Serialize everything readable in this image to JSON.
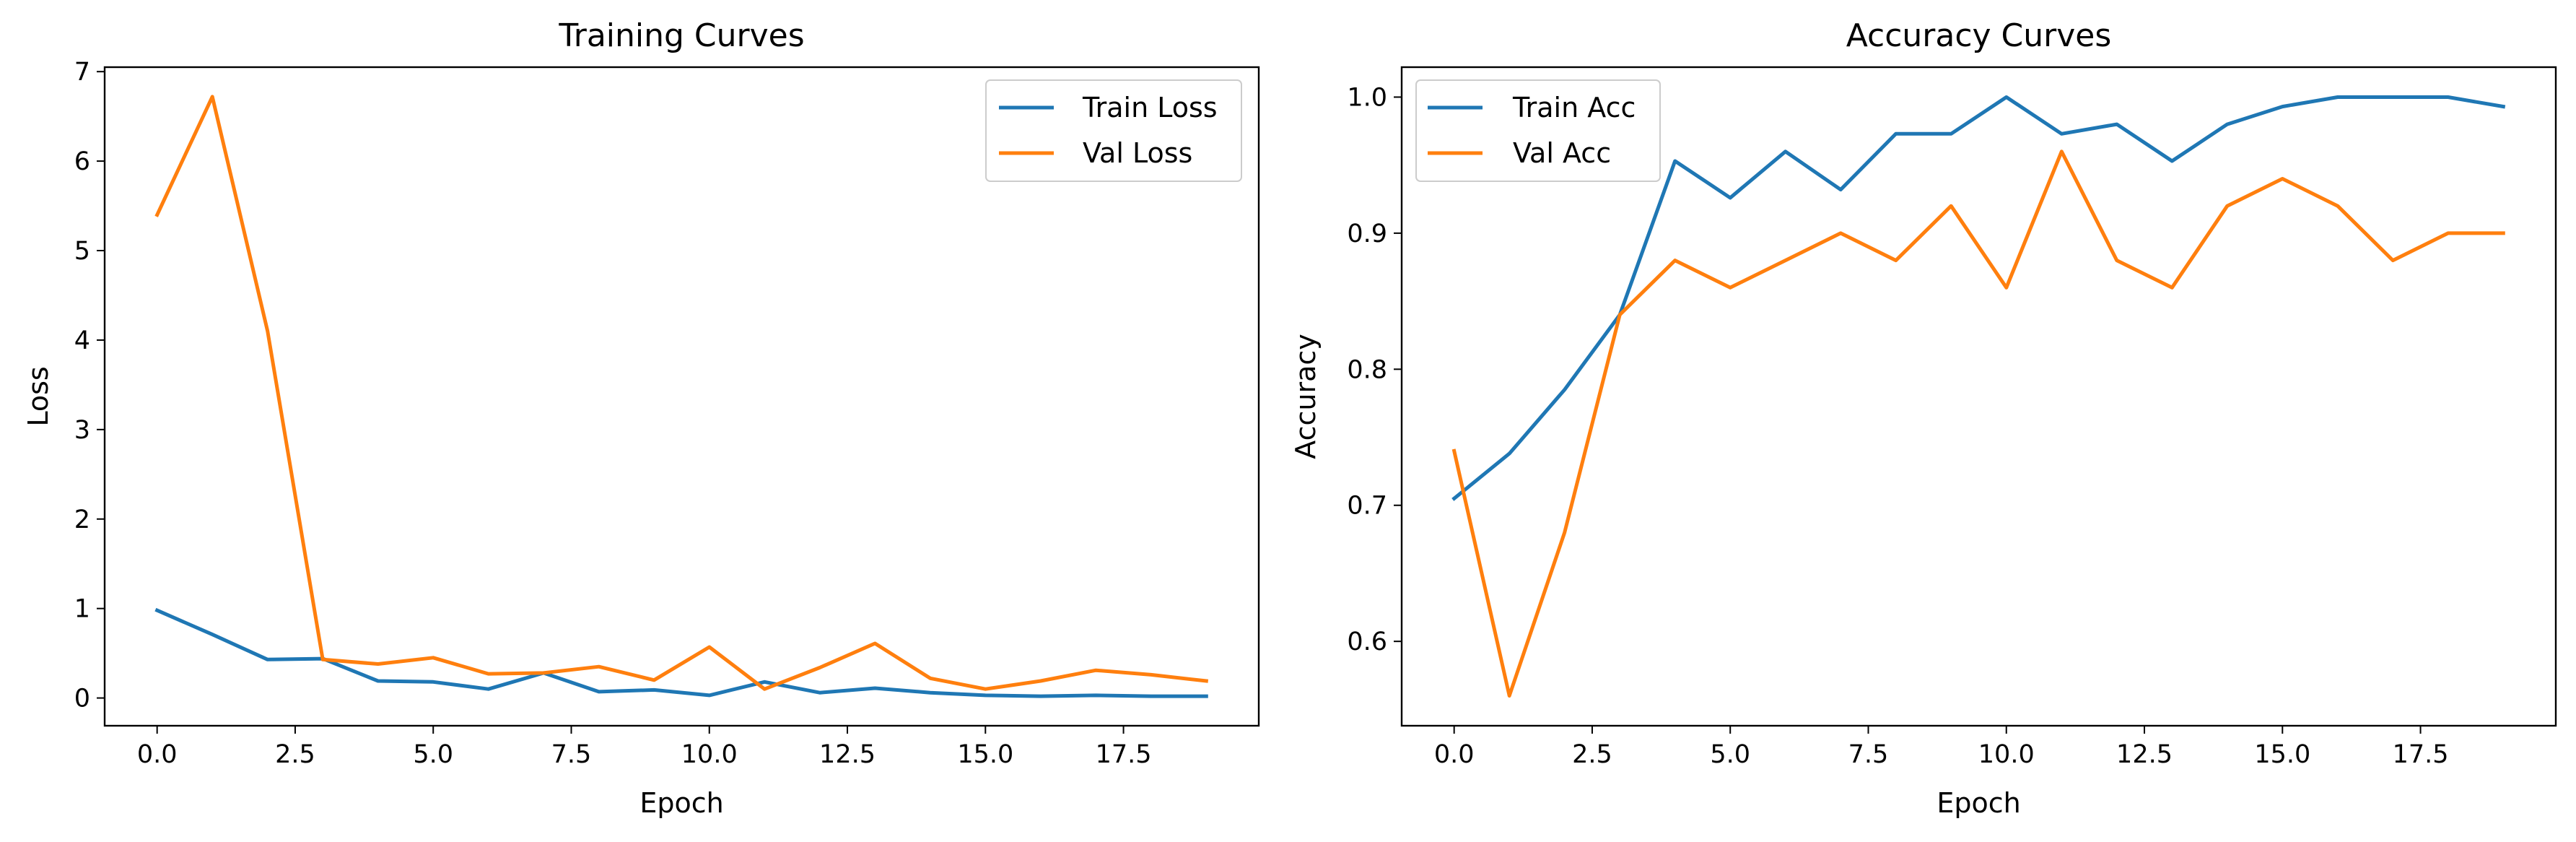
{
  "chart_data": [
    {
      "type": "line",
      "title": "Training Curves",
      "xlabel": "Epoch",
      "ylabel": "Loss",
      "xlim": [
        -0.95,
        19.95
      ],
      "ylim": [
        -0.31,
        7.05
      ],
      "x_ticks": [
        0.0,
        2.5,
        5.0,
        7.5,
        10.0,
        12.5,
        15.0,
        17.5
      ],
      "x_tick_labels": [
        "0.0",
        "2.5",
        "5.0",
        "7.5",
        "10.0",
        "12.5",
        "15.0",
        "17.5"
      ],
      "y_ticks": [
        0,
        1,
        2,
        3,
        4,
        5,
        6,
        7
      ],
      "y_tick_labels": [
        "0",
        "1",
        "2",
        "3",
        "4",
        "5",
        "6",
        "7"
      ],
      "legend_position": "top-right",
      "grid": false,
      "x": [
        0,
        1,
        2,
        3,
        4,
        5,
        6,
        7,
        8,
        9,
        10,
        11,
        12,
        13,
        14,
        15,
        16,
        17,
        18,
        19
      ],
      "series": [
        {
          "name": "Train Loss",
          "color": "#1f77b4",
          "values": [
            0.98,
            0.71,
            0.43,
            0.44,
            0.19,
            0.18,
            0.1,
            0.28,
            0.07,
            0.09,
            0.03,
            0.18,
            0.06,
            0.11,
            0.06,
            0.03,
            0.02,
            0.03,
            0.02,
            0.02
          ]
        },
        {
          "name": "Val Loss",
          "color": "#ff7f0e",
          "values": [
            5.4,
            6.72,
            4.1,
            0.43,
            0.38,
            0.45,
            0.27,
            0.28,
            0.35,
            0.2,
            0.57,
            0.1,
            0.34,
            0.61,
            0.22,
            0.1,
            0.19,
            0.31,
            0.26,
            0.19
          ]
        }
      ]
    },
    {
      "type": "line",
      "title": "Accuracy Curves",
      "xlabel": "Epoch",
      "ylabel": "Accuracy",
      "xlim": [
        -0.95,
        19.95
      ],
      "ylim": [
        0.538,
        1.022
      ],
      "x_ticks": [
        0.0,
        2.5,
        5.0,
        7.5,
        10.0,
        12.5,
        15.0,
        17.5
      ],
      "x_tick_labels": [
        "0.0",
        "2.5",
        "5.0",
        "7.5",
        "10.0",
        "12.5",
        "15.0",
        "17.5"
      ],
      "y_ticks": [
        0.6,
        0.7,
        0.8,
        0.9,
        1.0
      ],
      "y_tick_labels": [
        "0.6",
        "0.7",
        "0.8",
        "0.9",
        "1.0"
      ],
      "legend_position": "top-left",
      "grid": false,
      "x": [
        0,
        1,
        2,
        3,
        4,
        5,
        6,
        7,
        8,
        9,
        10,
        11,
        12,
        13,
        14,
        15,
        16,
        17,
        18,
        19
      ],
      "series": [
        {
          "name": "Train Acc",
          "color": "#1f77b4",
          "values": [
            0.705,
            0.738,
            0.785,
            0.84,
            0.953,
            0.926,
            0.96,
            0.932,
            0.973,
            0.973,
            1.0,
            0.973,
            0.98,
            0.953,
            0.98,
            0.993,
            1.0,
            1.0,
            1.0,
            0.993
          ]
        },
        {
          "name": "Val Acc",
          "color": "#ff7f0e",
          "values": [
            0.74,
            0.56,
            0.68,
            0.84,
            0.88,
            0.86,
            0.88,
            0.9,
            0.88,
            0.92,
            0.86,
            0.96,
            0.88,
            0.86,
            0.92,
            0.94,
            0.92,
            0.88,
            0.9,
            0.9
          ]
        }
      ]
    }
  ]
}
